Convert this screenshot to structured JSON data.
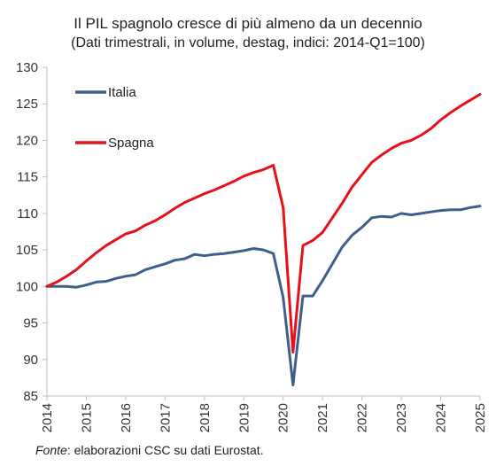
{
  "chart_data": {
    "type": "line",
    "title": "Il PIL spagnolo cresce di più almeno da un decennio",
    "subtitle": "(Dati trimestrali, in volume, destag, indici: 2014-Q1=100)",
    "xlabel": "",
    "ylabel": "",
    "ylim": [
      85,
      130
    ],
    "yticks": [
      85,
      90,
      95,
      100,
      105,
      110,
      115,
      120,
      125,
      130
    ],
    "xlim": [
      2014.0,
      2025.0
    ],
    "xticks": [
      "2014",
      "2015",
      "2016",
      "2017",
      "2018",
      "2019",
      "2020",
      "2021",
      "2022",
      "2023",
      "2024",
      "2025"
    ],
    "x": [
      2014.0,
      2014.25,
      2014.5,
      2014.75,
      2015.0,
      2015.25,
      2015.5,
      2015.75,
      2016.0,
      2016.25,
      2016.5,
      2016.75,
      2017.0,
      2017.25,
      2017.5,
      2017.75,
      2018.0,
      2018.25,
      2018.5,
      2018.75,
      2019.0,
      2019.25,
      2019.5,
      2019.75,
      2020.0,
      2020.25,
      2020.5,
      2020.75,
      2021.0,
      2021.25,
      2021.5,
      2021.75,
      2022.0,
      2022.25,
      2022.5,
      2022.75,
      2023.0,
      2023.25,
      2023.5,
      2023.75,
      2024.0,
      2024.25,
      2024.5,
      2024.75,
      2025.0
    ],
    "series": [
      {
        "name": "Italia",
        "color": "#3f5f8a",
        "values": [
          100.0,
          100.0,
          100.0,
          99.9,
          100.2,
          100.6,
          100.7,
          101.1,
          101.4,
          101.6,
          102.3,
          102.7,
          103.1,
          103.6,
          103.8,
          104.4,
          104.2,
          104.4,
          104.5,
          104.7,
          104.9,
          105.2,
          105.0,
          104.5,
          98.5,
          86.5,
          98.7,
          98.7,
          100.8,
          103.1,
          105.4,
          107.0,
          108.1,
          109.4,
          109.6,
          109.5,
          110.0,
          109.8,
          110.0,
          110.2,
          110.4,
          110.5,
          110.5,
          110.8,
          111.0
        ]
      },
      {
        "name": "Spagna",
        "color": "#e3121b",
        "values": [
          100.0,
          100.6,
          101.4,
          102.3,
          103.5,
          104.6,
          105.6,
          106.4,
          107.2,
          107.6,
          108.4,
          109.0,
          109.8,
          110.7,
          111.5,
          112.1,
          112.7,
          113.2,
          113.8,
          114.4,
          115.1,
          115.6,
          116.0,
          116.6,
          110.8,
          91.0,
          105.6,
          106.3,
          107.4,
          109.4,
          111.4,
          113.6,
          115.3,
          117.0,
          118.0,
          118.9,
          119.6,
          120.0,
          120.7,
          121.6,
          122.8,
          123.8,
          124.7,
          125.5,
          126.3
        ]
      }
    ],
    "legend": {
      "placement": "top-left"
    },
    "grid": false
  },
  "source": {
    "prefix": "Fonte",
    "text": ": elaborazioni CSC su dati Eurostat."
  }
}
